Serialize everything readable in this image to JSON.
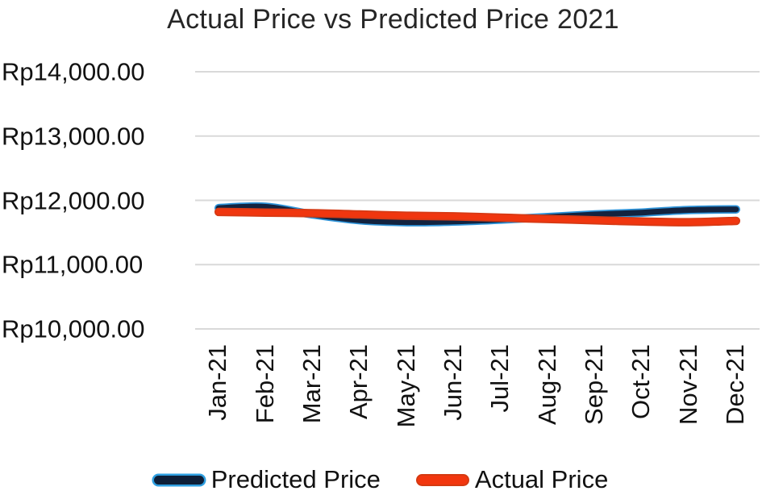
{
  "chart_data": {
    "type": "line",
    "title": "Actual Price vs Predicted Price 2021",
    "categories": [
      "Jan-21",
      "Feb-21",
      "Mar-21",
      "Apr-21",
      "May-21",
      "Jun-21",
      "Jul-21",
      "Aug-21",
      "Sep-21",
      "Oct-21",
      "Nov-21",
      "Dec-21"
    ],
    "series": [
      {
        "name": "Predicted Price",
        "color": "#13233f",
        "halo_color": "#2e93d8",
        "values": [
          11880,
          11900,
          11780,
          11690,
          11660,
          11670,
          11700,
          11740,
          11780,
          11810,
          11850,
          11860
        ]
      },
      {
        "name": "Actual Price",
        "color": "#f0360f",
        "halo_color": "#d63a15",
        "values": [
          11820,
          11810,
          11800,
          11780,
          11760,
          11750,
          11730,
          11710,
          11690,
          11670,
          11660,
          11680
        ]
      }
    ],
    "y_axis": {
      "min": 10000,
      "max": 14000,
      "tick_step": 1000,
      "ticks": [
        {
          "value": 14000,
          "label": "Rp14,000.00"
        },
        {
          "value": 13000,
          "label": "Rp13,000.00"
        },
        {
          "value": 12000,
          "label": "Rp12,000.00"
        },
        {
          "value": 11000,
          "label": "Rp11,000.00"
        },
        {
          "value": 10000,
          "label": "Rp10,000.00"
        }
      ],
      "currency_prefix": "Rp"
    },
    "x_axis": {
      "label_rotation_degrees": 90
    },
    "grid": true,
    "legend_position": "bottom",
    "line_style": "smooth"
  },
  "colors": {
    "background": "#ffffff",
    "gridline": "#d9d9d9",
    "axis_text": "#111111",
    "title_text": "#262626",
    "predicted_line": "#13233f",
    "predicted_halo": "#2e93d8",
    "actual_line": "#f0360f"
  }
}
